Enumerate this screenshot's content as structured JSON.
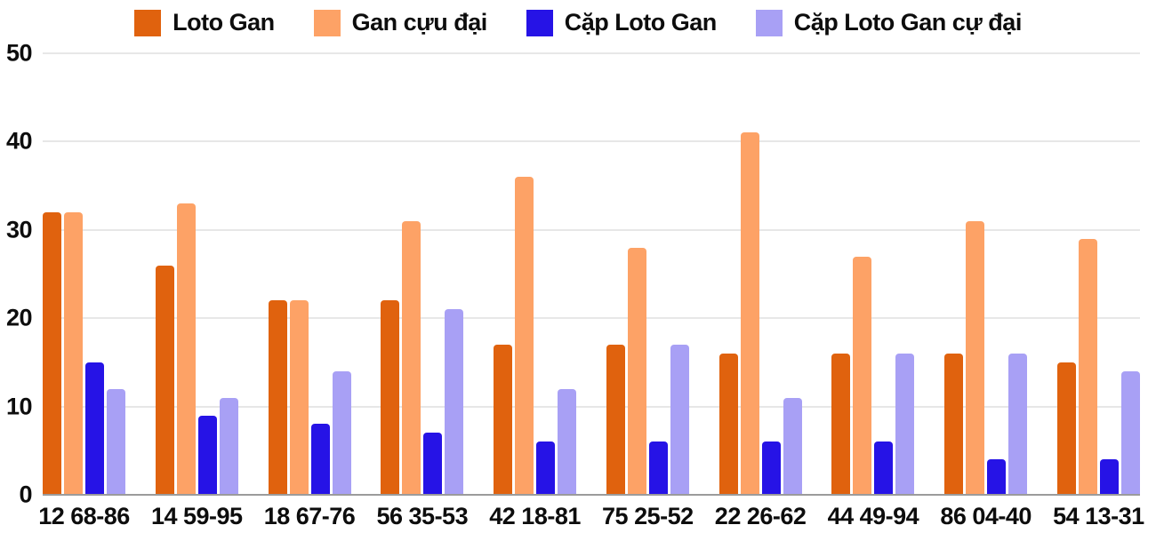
{
  "chart_data": {
    "type": "bar",
    "title": "",
    "xlabel": "",
    "ylabel": "",
    "ylim": [
      0,
      50
    ],
    "yticks": [
      0,
      10,
      20,
      30,
      40,
      50
    ],
    "grid": true,
    "legend_position": "top",
    "categories": [
      "12 68-86",
      "14 59-95",
      "18 67-76",
      "56 35-53",
      "42 18-81",
      "75 25-52",
      "22 26-62",
      "44 49-94",
      "86 04-40",
      "54 13-31"
    ],
    "series": [
      {
        "name": "Loto Gan",
        "color": "#e0620e",
        "values": [
          32,
          26,
          22,
          22,
          17,
          17,
          16,
          16,
          16,
          15
        ]
      },
      {
        "name": "Gan cựu đại",
        "color": "#fda266",
        "values": [
          32,
          33,
          22,
          31,
          36,
          28,
          41,
          27,
          31,
          29
        ]
      },
      {
        "name": "Cặp Loto Gan",
        "color": "#2613e6",
        "values": [
          15,
          9,
          8,
          7,
          6,
          6,
          6,
          6,
          4,
          4
        ]
      },
      {
        "name": "Cặp Loto Gan cự đại",
        "color": "#a8a0f5",
        "values": [
          12,
          11,
          14,
          21,
          12,
          17,
          11,
          16,
          16,
          14
        ]
      }
    ]
  }
}
